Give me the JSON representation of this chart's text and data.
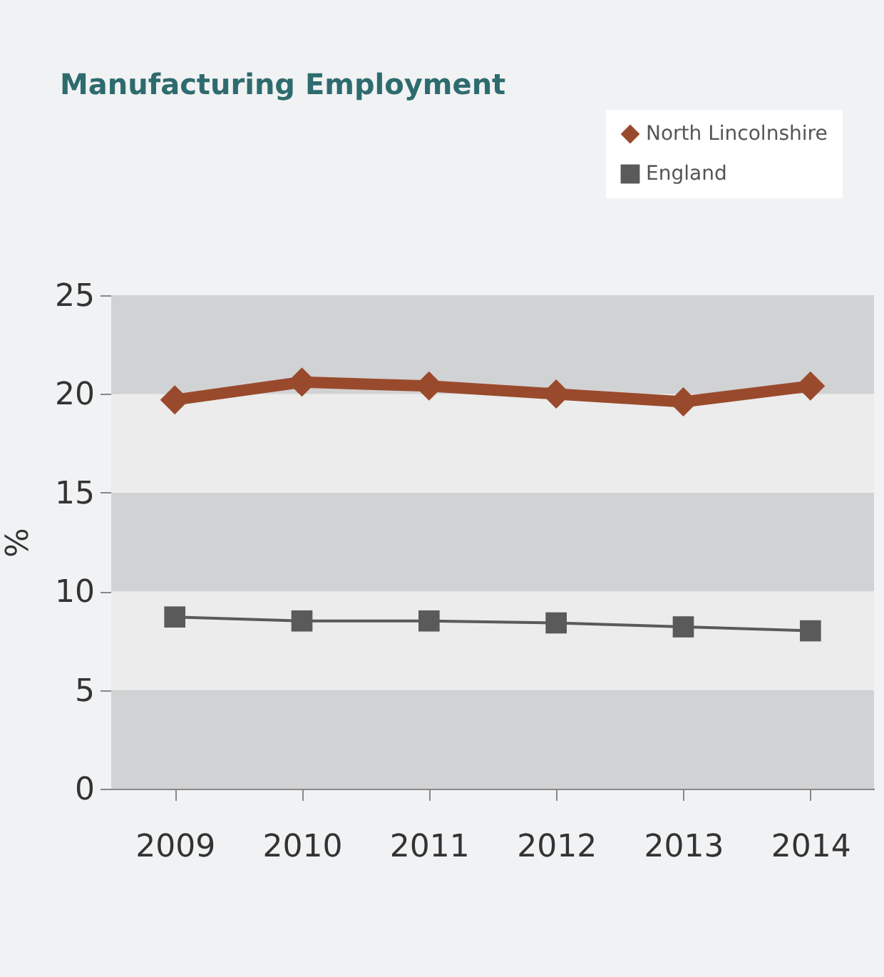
{
  "chart_data": {
    "type": "line",
    "title": "Manufacturing Employment",
    "ylabel": "%",
    "categories": [
      "2009",
      "2010",
      "2011",
      "2012",
      "2013",
      "2014"
    ],
    "series": [
      {
        "name": "North Lincolnshire",
        "color": "#9a4a2c",
        "values": [
          19.7,
          20.6,
          20.4,
          20.0,
          19.6,
          20.4
        ],
        "marker": "diamond"
      },
      {
        "name": "England",
        "color": "#5a5a5a",
        "values": [
          8.7,
          8.5,
          8.5,
          8.4,
          8.2,
          8.0
        ],
        "marker": "square"
      }
    ],
    "ylim": [
      0,
      25
    ],
    "yticks": [
      0,
      5,
      10,
      15,
      20,
      25
    ],
    "bands": [
      {
        "axis": "y",
        "from": 0,
        "to": 5,
        "color": "#d1d2d4"
      },
      {
        "axis": "y",
        "from": 5,
        "to": 10,
        "color": "#ebeceb"
      },
      {
        "axis": "y",
        "from": 10,
        "to": 15,
        "color": "#d1d2d4"
      },
      {
        "axis": "y",
        "from": 15,
        "to": 20,
        "color": "#ebeceb"
      },
      {
        "axis": "y",
        "from": 20,
        "to": 25,
        "color": "#d1d2d4"
      }
    ],
    "grid": false,
    "legend": "top right",
    "line_style": "solid"
  }
}
